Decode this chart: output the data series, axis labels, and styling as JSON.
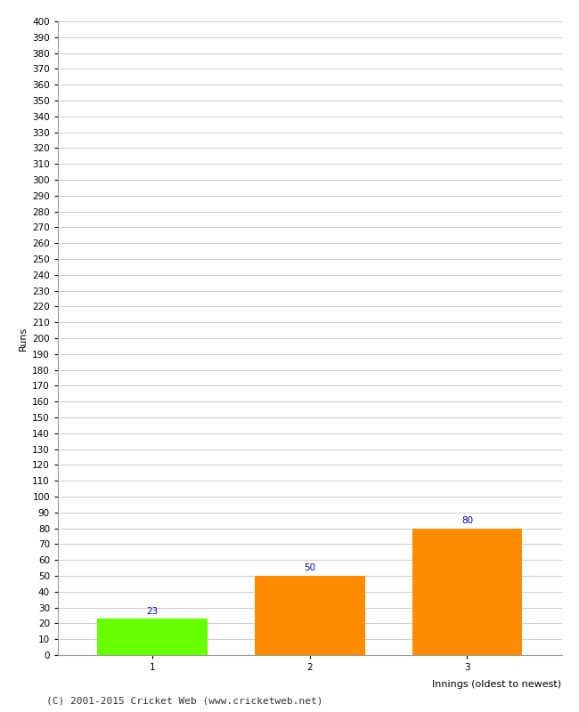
{
  "categories": [
    "1",
    "2",
    "3"
  ],
  "values": [
    23,
    50,
    80
  ],
  "bar_colors": [
    "#66ff00",
    "#ff8c00",
    "#ff8c00"
  ],
  "bar_width": 0.7,
  "xlabel": "Innings (oldest to newest)",
  "ylabel": "Runs",
  "ylim": [
    0,
    400
  ],
  "ytick_step": 10,
  "value_labels": [
    23,
    50,
    80
  ],
  "value_label_color": "#0000cc",
  "value_label_fontsize": 7.5,
  "axis_label_fontsize": 8,
  "tick_fontsize": 7.5,
  "grid_color": "#cccccc",
  "background_color": "#ffffff",
  "footer_text": "(C) 2001-2015 Cricket Web (www.cricketweb.net)",
  "footer_fontsize": 8,
  "footer_color": "#333333"
}
